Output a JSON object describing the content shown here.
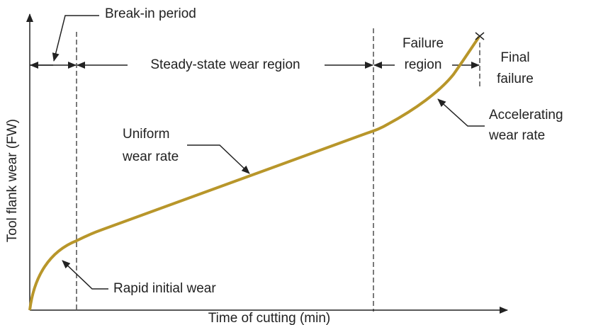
{
  "axes": {
    "y_label": "Tool flank wear (FW)",
    "x_label": "Time of cutting (min)"
  },
  "regions": {
    "break_in": "Break-in period",
    "steady_state": "Steady-state wear region",
    "failure": [
      "Failure",
      "region"
    ],
    "final_failure": [
      "Final",
      "failure"
    ]
  },
  "annotations": {
    "uniform": [
      "Uniform",
      "wear rate"
    ],
    "accelerating": [
      "Accelerating",
      "wear rate"
    ],
    "rapid": "Rapid initial wear"
  }
}
